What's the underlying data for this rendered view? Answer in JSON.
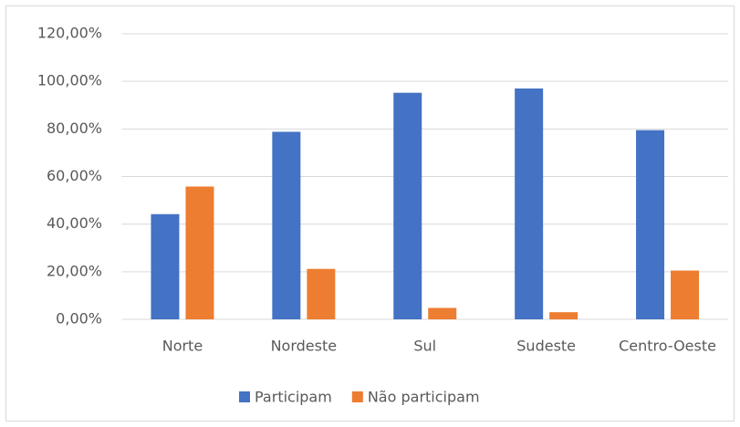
{
  "chart_data": {
    "type": "bar",
    "categories": [
      "Norte",
      "Nordeste",
      "Sul",
      "Sudeste",
      "Centro-Oeste"
    ],
    "series": [
      {
        "name": "Participam",
        "color": "#4472c4",
        "values": [
          44.2,
          78.8,
          95.2,
          97.0,
          79.5
        ]
      },
      {
        "name": "Não participam",
        "color": "#ed7d31",
        "values": [
          55.8,
          21.2,
          4.8,
          3.0,
          20.5
        ]
      }
    ],
    "ylim": [
      0,
      120
    ],
    "yticks": [
      {
        "value": 0,
        "label": "0,00%"
      },
      {
        "value": 20,
        "label": "20,00%"
      },
      {
        "value": 40,
        "label": "40,00%"
      },
      {
        "value": 60,
        "label": "60,00%"
      },
      {
        "value": 80,
        "label": "80,00%"
      },
      {
        "value": 100,
        "label": "100,00%"
      },
      {
        "value": 120,
        "label": "120,00%"
      }
    ],
    "grid": true,
    "legend": "bottom"
  }
}
